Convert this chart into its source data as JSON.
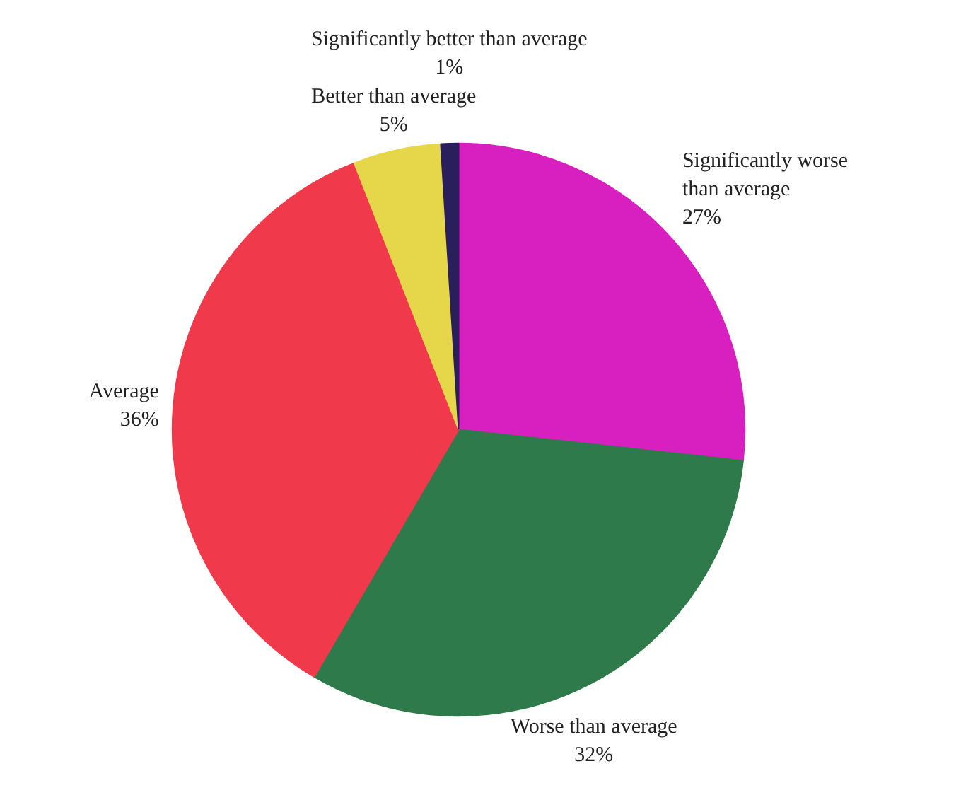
{
  "chart_data": {
    "type": "pie",
    "categories": [
      "Significantly worse than average",
      "Worse than average",
      "Average",
      "Better than average",
      "Significantly better than average"
    ],
    "values": [
      27,
      32,
      36,
      5,
      1
    ],
    "value_labels": [
      "27%",
      "32%",
      "36%",
      "5%",
      "1%"
    ],
    "colors": [
      "#d81fc0",
      "#2f7a4a",
      "#f03a4c",
      "#e6d64a",
      "#2a1e5c"
    ]
  }
}
